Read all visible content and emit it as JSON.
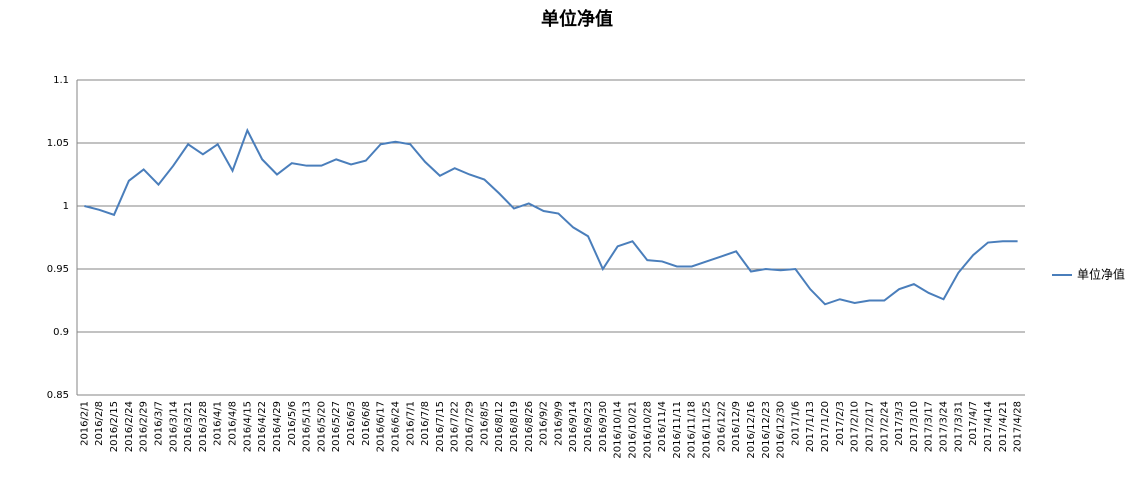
{
  "chart_data": {
    "type": "line",
    "title": "单位净值",
    "categories": [
      "2016/2/1",
      "2016/2/8",
      "2016/2/15",
      "2016/2/24",
      "2016/2/29",
      "2016/3/7",
      "2016/3/14",
      "2016/3/21",
      "2016/3/28",
      "2016/4/1",
      "2016/4/8",
      "2016/4/15",
      "2016/4/22",
      "2016/4/29",
      "2016/5/6",
      "2016/5/13",
      "2016/5/20",
      "2016/5/27",
      "2016/6/3",
      "2016/6/8",
      "2016/6/17",
      "2016/6/24",
      "2016/7/1",
      "2016/7/8",
      "2016/7/15",
      "2016/7/22",
      "2016/7/29",
      "2016/8/5",
      "2016/8/12",
      "2016/8/19",
      "2016/8/26",
      "2016/9/2",
      "2016/9/9",
      "2016/9/14",
      "2016/9/23",
      "2016/9/30",
      "2016/10/14",
      "2016/10/21",
      "2016/10/28",
      "2016/11/4",
      "2016/11/11",
      "2016/11/18",
      "2016/11/25",
      "2016/12/2",
      "2016/12/9",
      "2016/12/16",
      "2016/12/23",
      "2016/12/30",
      "2017/1/6",
      "2017/1/13",
      "2017/1/20",
      "2017/2/3",
      "2017/2/10",
      "2017/2/17",
      "2017/2/24",
      "2017/3/3",
      "2017/3/10",
      "2017/3/17",
      "2017/3/24",
      "2017/3/31",
      "2017/4/7",
      "2017/4/14",
      "2017/4/21",
      "2017/4/28"
    ],
    "series": [
      {
        "name": "单位净值",
        "color": "#4a7ebb",
        "values": [
          1.0,
          0.997,
          0.993,
          1.02,
          1.029,
          1.017,
          1.032,
          1.049,
          1.041,
          1.049,
          1.028,
          1.06,
          1.037,
          1.025,
          1.034,
          1.032,
          1.032,
          1.037,
          1.033,
          1.036,
          1.049,
          1.051,
          1.049,
          1.035,
          1.024,
          1.03,
          1.025,
          1.021,
          1.01,
          0.998,
          1.002,
          0.996,
          0.994,
          0.983,
          0.976,
          0.95,
          0.968,
          0.972,
          0.957,
          0.956,
          0.952,
          0.952,
          0.956,
          0.96,
          0.964,
          0.948,
          0.95,
          0.949,
          0.95,
          0.934,
          0.922,
          0.926,
          0.923,
          0.925,
          0.925,
          0.934,
          0.938,
          0.931,
          0.926,
          0.947,
          0.961,
          0.971,
          0.972,
          0.972
        ]
      }
    ],
    "ylim": [
      0.85,
      1.1
    ],
    "yticks": [
      0.85,
      0.9,
      0.95,
      1,
      1.05,
      1.1
    ],
    "grid": true,
    "legend": "right"
  }
}
